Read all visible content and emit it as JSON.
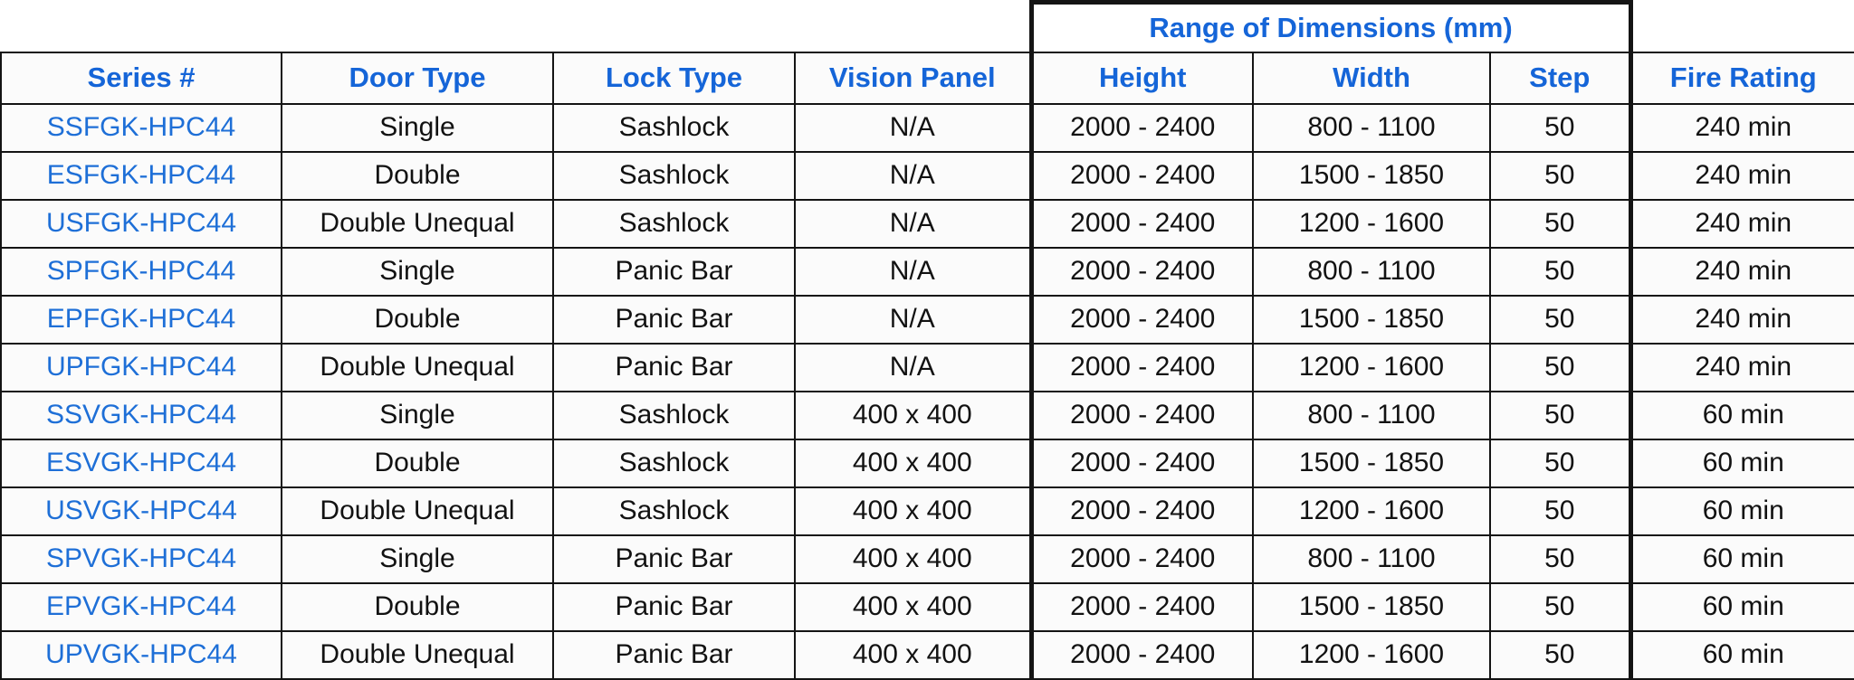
{
  "table": {
    "group_header": "Range of Dimensions (mm)",
    "columns": [
      {
        "key": "series",
        "label": "Series #"
      },
      {
        "key": "door_type",
        "label": "Door Type"
      },
      {
        "key": "lock_type",
        "label": "Lock Type"
      },
      {
        "key": "vision_panel",
        "label": "Vision Panel"
      },
      {
        "key": "height",
        "label": "Height"
      },
      {
        "key": "width",
        "label": "Width"
      },
      {
        "key": "step",
        "label": "Step"
      },
      {
        "key": "fire_rating",
        "label": "Fire Rating"
      }
    ],
    "rows": [
      {
        "series": "SSFGK-HPC44",
        "door_type": "Single",
        "lock_type": "Sashlock",
        "vision_panel": "N/A",
        "height": "2000 - 2400",
        "width": "800 - 1100",
        "step": "50",
        "fire_rating": "240 min"
      },
      {
        "series": "ESFGK-HPC44",
        "door_type": "Double",
        "lock_type": "Sashlock",
        "vision_panel": "N/A",
        "height": "2000 - 2400",
        "width": "1500 - 1850",
        "step": "50",
        "fire_rating": "240 min"
      },
      {
        "series": "USFGK-HPC44",
        "door_type": "Double Unequal",
        "lock_type": "Sashlock",
        "vision_panel": "N/A",
        "height": "2000 - 2400",
        "width": "1200 - 1600",
        "step": "50",
        "fire_rating": "240 min"
      },
      {
        "series": "SPFGK-HPC44",
        "door_type": "Single",
        "lock_type": "Panic Bar",
        "vision_panel": "N/A",
        "height": "2000 - 2400",
        "width": "800 - 1100",
        "step": "50",
        "fire_rating": "240 min"
      },
      {
        "series": "EPFGK-HPC44",
        "door_type": "Double",
        "lock_type": "Panic Bar",
        "vision_panel": "N/A",
        "height": "2000 - 2400",
        "width": "1500 - 1850",
        "step": "50",
        "fire_rating": "240 min"
      },
      {
        "series": "UPFGK-HPC44",
        "door_type": "Double Unequal",
        "lock_type": "Panic Bar",
        "vision_panel": "N/A",
        "height": "2000 - 2400",
        "width": "1200 - 1600",
        "step": "50",
        "fire_rating": "240 min"
      },
      {
        "series": "SSVGK-HPC44",
        "door_type": "Single",
        "lock_type": "Sashlock",
        "vision_panel": "400 x 400",
        "height": "2000 - 2400",
        "width": "800 - 1100",
        "step": "50",
        "fire_rating": "60 min"
      },
      {
        "series": "ESVGK-HPC44",
        "door_type": "Double",
        "lock_type": "Sashlock",
        "vision_panel": "400 x 400",
        "height": "2000 - 2400",
        "width": "1500 - 1850",
        "step": "50",
        "fire_rating": "60 min"
      },
      {
        "series": "USVGK-HPC44",
        "door_type": "Double Unequal",
        "lock_type": "Sashlock",
        "vision_panel": "400 x 400",
        "height": "2000 - 2400",
        "width": "1200 - 1600",
        "step": "50",
        "fire_rating": "60 min"
      },
      {
        "series": "SPVGK-HPC44",
        "door_type": "Single",
        "lock_type": "Panic Bar",
        "vision_panel": "400 x 400",
        "height": "2000 - 2400",
        "width": "800 - 1100",
        "step": "50",
        "fire_rating": "60 min"
      },
      {
        "series": "EPVGK-HPC44",
        "door_type": "Double",
        "lock_type": "Panic Bar",
        "vision_panel": "400 x 400",
        "height": "2000 - 2400",
        "width": "1500 - 1850",
        "step": "50",
        "fire_rating": "60 min"
      },
      {
        "series": "UPVGK-HPC44",
        "door_type": "Double Unequal",
        "lock_type": "Panic Bar",
        "vision_panel": "400 x 400",
        "height": "2000 - 2400",
        "width": "1200 - 1600",
        "step": "50",
        "fire_rating": "60 min"
      }
    ]
  },
  "colors": {
    "header_text": "#1565d8",
    "series_text": "#1e6fd7",
    "body_text": "#121212",
    "border": "#141414",
    "cell_background": "#fbfbfb",
    "page_background": "#ffffff"
  }
}
